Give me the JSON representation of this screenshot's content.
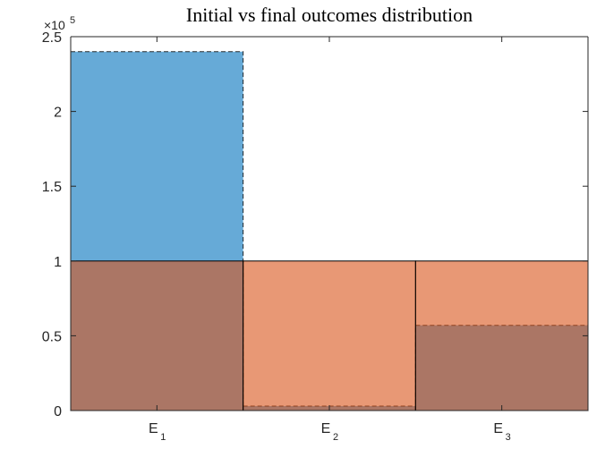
{
  "chart_data": {
    "type": "bar",
    "title": "Initial vs final outcomes distribution",
    "xlabel": "",
    "ylabel": "",
    "y_exponent_label": "×10",
    "y_exponent_power": "5",
    "ylim": [
      0,
      250000
    ],
    "yticks": [
      {
        "value": 0,
        "label": "0"
      },
      {
        "value": 50000,
        "label": "0.5"
      },
      {
        "value": 100000,
        "label": "1"
      },
      {
        "value": 150000,
        "label": "1.5"
      },
      {
        "value": 200000,
        "label": "2"
      },
      {
        "value": 250000,
        "label": "2.5"
      }
    ],
    "categories": [
      {
        "base": "E",
        "sub": "1"
      },
      {
        "base": "E",
        "sub": "2"
      },
      {
        "base": "E",
        "sub": "3"
      }
    ],
    "series": [
      {
        "values": [
          240000,
          3000,
          57000
        ],
        "color": "#0072BD",
        "edge": "dashed"
      },
      {
        "values": [
          100000,
          100000,
          100000
        ],
        "color": "#D95319",
        "edge": "solid"
      }
    ],
    "grid": false,
    "legend": "none"
  }
}
